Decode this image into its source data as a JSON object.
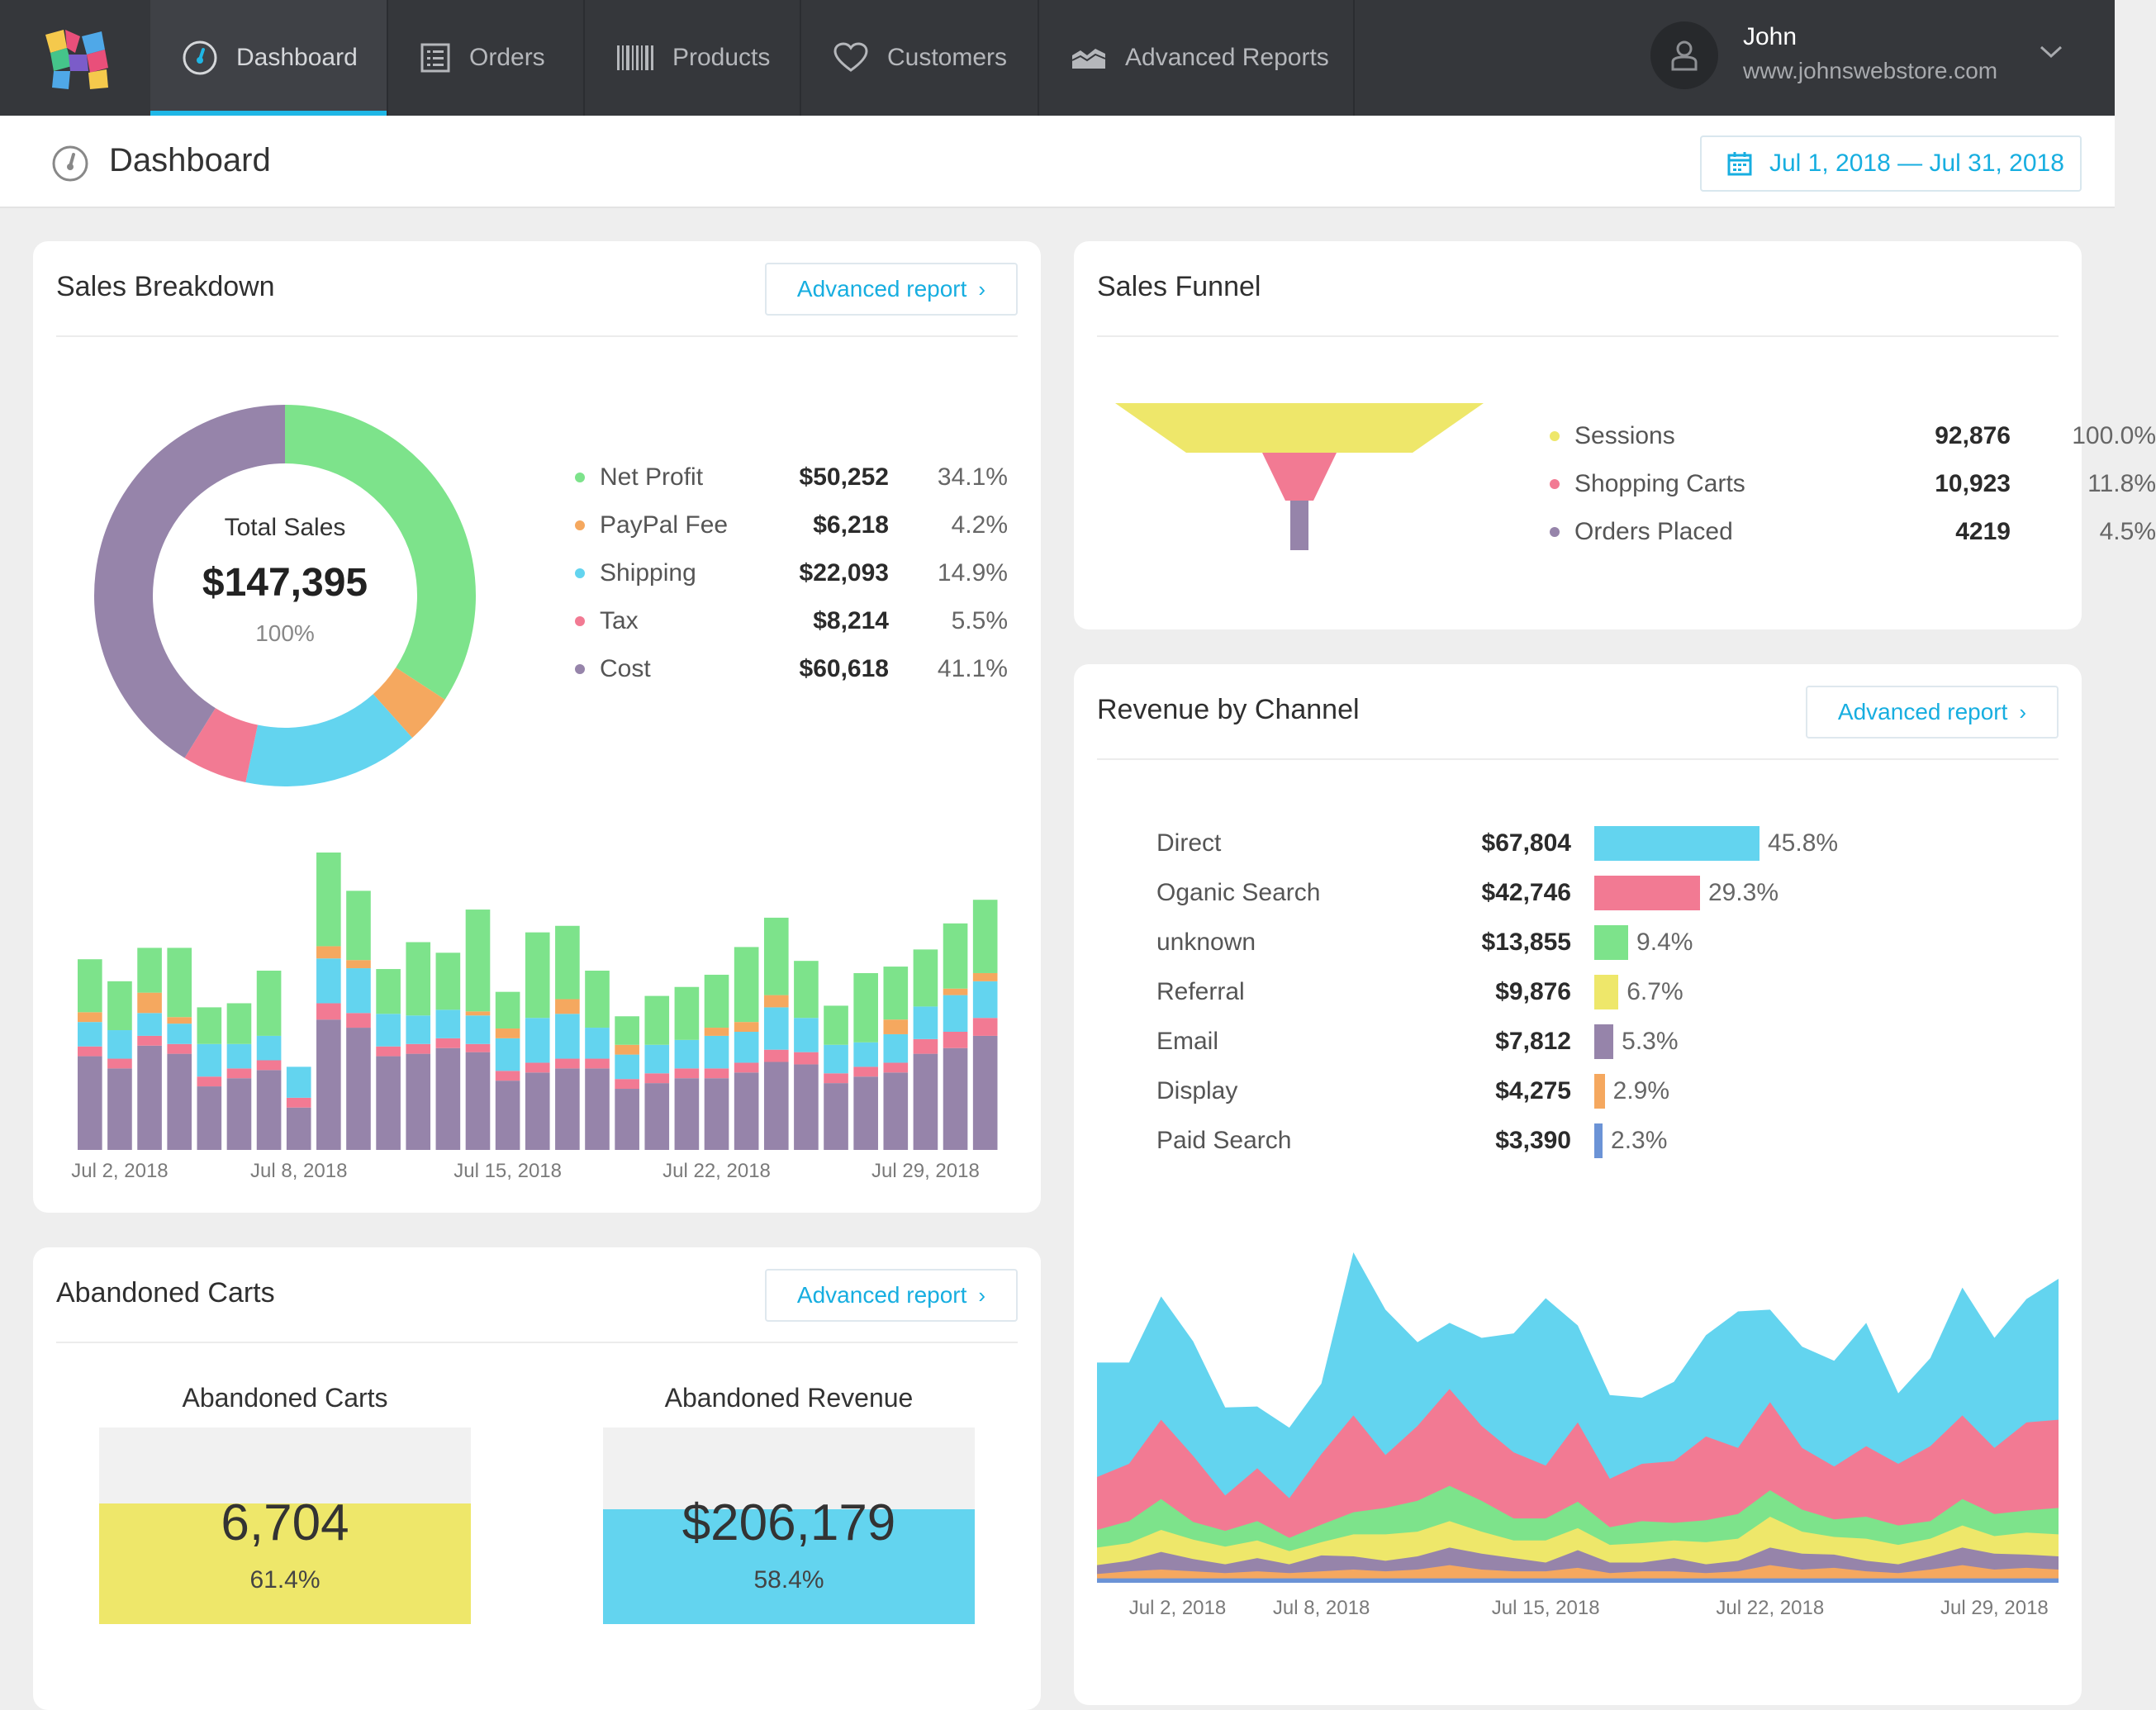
{
  "nav": {
    "items": [
      {
        "label": "Dashboard",
        "icon": "gauge-icon"
      },
      {
        "label": "Orders",
        "icon": "list-icon"
      },
      {
        "label": "Products",
        "icon": "barcode-icon"
      },
      {
        "label": "Customers",
        "icon": "heart-icon"
      },
      {
        "label": "Advanced Reports",
        "icon": "area-chart-icon"
      }
    ],
    "active": "Dashboard"
  },
  "user": {
    "name": "John",
    "site": "www.johnswebstore.com"
  },
  "page": {
    "title": "Dashboard",
    "date_range": "Jul 1, 2018 — Jul 31, 2018"
  },
  "colors": {
    "green": "#7de38b",
    "orange": "#f5a85f",
    "cyan": "#63d4ef",
    "pink": "#f27a93",
    "purple": "#9684aa",
    "yellow": "#eee76a",
    "blue": "#6b93d6",
    "accent": "#17aee0"
  },
  "sales_breakdown": {
    "title": "Sales Breakdown",
    "advanced_label": "Advanced report",
    "total_label": "Total Sales",
    "total_value": "$147,395",
    "total_pct": "100%",
    "legend": [
      {
        "label": "Net Profit",
        "value": "$50,252",
        "pct": "34.1%",
        "color": "#7de38b"
      },
      {
        "label": "PayPal Fee",
        "value": "$6,218",
        "pct": "4.2%",
        "color": "#f5a85f"
      },
      {
        "label": "Shipping",
        "value": "$22,093",
        "pct": "14.9%",
        "color": "#63d4ef"
      },
      {
        "label": "Tax",
        "value": "$8,214",
        "pct": "5.5%",
        "color": "#f27a93"
      },
      {
        "label": "Cost",
        "value": "$60,618",
        "pct": "41.1%",
        "color": "#9684aa"
      }
    ]
  },
  "sales_funnel": {
    "title": "Sales Funnel",
    "rows": [
      {
        "label": "Sessions",
        "value": "92,876",
        "pct": "100.0%",
        "color": "#eee76a"
      },
      {
        "label": "Shopping Carts",
        "value": "10,923",
        "pct": "11.8%",
        "color": "#f27a93"
      },
      {
        "label": "Orders Placed",
        "value": "4219",
        "pct": "4.5%",
        "color": "#9684aa"
      }
    ]
  },
  "revenue_channel": {
    "title": "Revenue by Channel",
    "advanced_label": "Advanced report",
    "rows": [
      {
        "label": "Direct",
        "value": "$67,804",
        "pct": "45.8%",
        "color": "#63d4ef",
        "share": 45.8
      },
      {
        "label": "Oganic Search",
        "value": "$42,746",
        "pct": "29.3%",
        "color": "#f27a93",
        "share": 29.3
      },
      {
        "label": "unknown",
        "value": "$13,855",
        "pct": "9.4%",
        "color": "#7de38b",
        "share": 9.4
      },
      {
        "label": "Referral",
        "value": "$9,876",
        "pct": "6.7%",
        "color": "#eee76a",
        "share": 6.7
      },
      {
        "label": "Email",
        "value": "$7,812",
        "pct": "5.3%",
        "color": "#9684aa",
        "share": 5.3
      },
      {
        "label": "Display",
        "value": "$4,275",
        "pct": "2.9%",
        "color": "#f5a85f",
        "share": 2.9
      },
      {
        "label": "Paid Search",
        "value": "$3,390",
        "pct": "2.3%",
        "color": "#6b93d6",
        "share": 2.3
      }
    ]
  },
  "abandoned": {
    "title": "Abandoned Carts",
    "advanced_label": "Advanced report",
    "carts": {
      "title": "Abandoned Carts",
      "value": "6,704",
      "pct": "61.4%",
      "fill": 0.614,
      "color": "#eee76a"
    },
    "revenue": {
      "title": "Abandoned Revenue",
      "value": "$206,179",
      "pct": "58.4%",
      "fill": 0.584,
      "color": "#63d4ef"
    }
  },
  "chart_data": [
    {
      "type": "pie",
      "title": "Total Sales",
      "labels": [
        "Net Profit",
        "PayPal Fee",
        "Shipping",
        "Tax",
        "Cost"
      ],
      "values": [
        34.1,
        4.2,
        14.9,
        5.5,
        41.1
      ]
    },
    {
      "type": "bar",
      "stacked": true,
      "x_ticks": [
        "Jul 2, 2018",
        "Jul 8, 2018",
        "Jul 15, 2018",
        "Jul 22, 2018",
        "Jul 29, 2018"
      ],
      "categories": [
        "Jul 1",
        "Jul 2",
        "Jul 3",
        "Jul 4",
        "Jul 5",
        "Jul 6",
        "Jul 7",
        "Jul 8",
        "Jul 9",
        "Jul 10",
        "Jul 11",
        "Jul 12",
        "Jul 13",
        "Jul 14",
        "Jul 15",
        "Jul 16",
        "Jul 17",
        "Jul 18",
        "Jul 19",
        "Jul 20",
        "Jul 21",
        "Jul 22",
        "Jul 23",
        "Jul 24",
        "Jul 25",
        "Jul 26",
        "Jul 27",
        "Jul 28",
        "Jul 29",
        "Jul 30",
        "Jul 31"
      ],
      "series": [
        {
          "name": "Cost",
          "values": [
            115,
            100,
            128,
            118,
            78,
            88,
            98,
            52,
            160,
            150,
            115,
            118,
            125,
            120,
            85,
            95,
            100,
            100,
            75,
            82,
            88,
            88,
            95,
            108,
            105,
            82,
            90,
            95,
            118,
            125,
            140
          ]
        },
        {
          "name": "Tax",
          "values": [
            12,
            12,
            12,
            12,
            12,
            12,
            12,
            12,
            20,
            18,
            12,
            12,
            12,
            10,
            12,
            12,
            12,
            12,
            12,
            12,
            12,
            12,
            12,
            15,
            15,
            12,
            12,
            12,
            18,
            20,
            22
          ]
        },
        {
          "name": "Shipping",
          "values": [
            30,
            35,
            28,
            25,
            40,
            30,
            30,
            38,
            55,
            55,
            40,
            35,
            35,
            35,
            40,
            55,
            55,
            38,
            30,
            35,
            35,
            40,
            38,
            52,
            42,
            35,
            30,
            35,
            40,
            45,
            45
          ]
        },
        {
          "name": "PayPal Fee",
          "values": [
            12,
            0,
            25,
            8,
            0,
            0,
            0,
            0,
            15,
            10,
            0,
            0,
            0,
            5,
            12,
            0,
            18,
            0,
            12,
            0,
            0,
            10,
            12,
            15,
            0,
            0,
            0,
            18,
            0,
            8,
            10
          ]
        },
        {
          "name": "Net Profit",
          "values": [
            65,
            60,
            55,
            85,
            45,
            50,
            80,
            0,
            115,
            85,
            55,
            90,
            70,
            125,
            45,
            105,
            90,
            70,
            35,
            60,
            65,
            65,
            92,
            95,
            70,
            48,
            85,
            65,
            70,
            80,
            90
          ]
        }
      ]
    },
    {
      "type": "area",
      "stacked": true,
      "x_ticks": [
        "Jul 2, 2018",
        "Jul 8, 2018",
        "Jul 15, 2018",
        "Jul 22, 2018",
        "Jul 29, 2018"
      ],
      "categories": [
        "Jul 1",
        "Jul 2",
        "Jul 3",
        "Jul 4",
        "Jul 5",
        "Jul 6",
        "Jul 7",
        "Jul 8",
        "Jul 9",
        "Jul 10",
        "Jul 11",
        "Jul 12",
        "Jul 13",
        "Jul 14",
        "Jul 15",
        "Jul 16",
        "Jul 17",
        "Jul 18",
        "Jul 19",
        "Jul 20",
        "Jul 21",
        "Jul 22",
        "Jul 23",
        "Jul 24",
        "Jul 25",
        "Jul 26",
        "Jul 27",
        "Jul 28",
        "Jul 29",
        "Jul 30",
        "Jul 31"
      ],
      "series": [
        {
          "name": "Paid Search",
          "values": [
            5,
            5,
            5,
            5,
            5,
            5,
            5,
            5,
            5,
            5,
            5,
            5,
            5,
            5,
            5,
            5,
            5,
            5,
            5,
            5,
            5,
            5,
            5,
            5,
            5,
            5,
            5,
            5,
            5,
            5,
            5
          ]
        },
        {
          "name": "Display",
          "values": [
            5,
            8,
            10,
            8,
            6,
            8,
            6,
            8,
            10,
            8,
            10,
            15,
            10,
            8,
            8,
            12,
            6,
            8,
            8,
            6,
            8,
            15,
            10,
            12,
            8,
            6,
            10,
            15,
            10,
            12,
            10
          ]
        },
        {
          "name": "Email",
          "values": [
            10,
            12,
            20,
            14,
            10,
            15,
            10,
            18,
            15,
            12,
            15,
            20,
            18,
            15,
            10,
            20,
            12,
            10,
            15,
            10,
            12,
            20,
            18,
            15,
            12,
            10,
            15,
            20,
            18,
            15,
            15
          ]
        },
        {
          "name": "Referral",
          "values": [
            20,
            20,
            25,
            22,
            20,
            20,
            15,
            15,
            25,
            30,
            28,
            30,
            25,
            20,
            25,
            25,
            20,
            22,
            20,
            25,
            25,
            35,
            25,
            20,
            25,
            22,
            20,
            25,
            20,
            25,
            25
          ]
        },
        {
          "name": "unknown",
          "values": [
            20,
            25,
            35,
            20,
            18,
            22,
            15,
            20,
            25,
            30,
            35,
            40,
            35,
            25,
            25,
            30,
            20,
            25,
            20,
            25,
            28,
            30,
            25,
            20,
            25,
            22,
            20,
            30,
            25,
            25,
            30
          ]
        },
        {
          "name": "Oganic Search",
          "values": [
            60,
            65,
            90,
            75,
            40,
            60,
            45,
            80,
            110,
            60,
            85,
            110,
            85,
            75,
            60,
            90,
            55,
            65,
            70,
            95,
            75,
            100,
            70,
            60,
            80,
            70,
            85,
            95,
            75,
            100,
            100
          ]
        },
        {
          "name": "Direct",
          "values": [
            130,
            115,
            140,
            130,
            100,
            70,
            80,
            80,
            185,
            165,
            95,
            75,
            100,
            135,
            190,
            110,
            95,
            75,
            90,
            115,
            155,
            105,
            115,
            120,
            140,
            80,
            100,
            145,
            125,
            140,
            160
          ]
        }
      ]
    }
  ]
}
